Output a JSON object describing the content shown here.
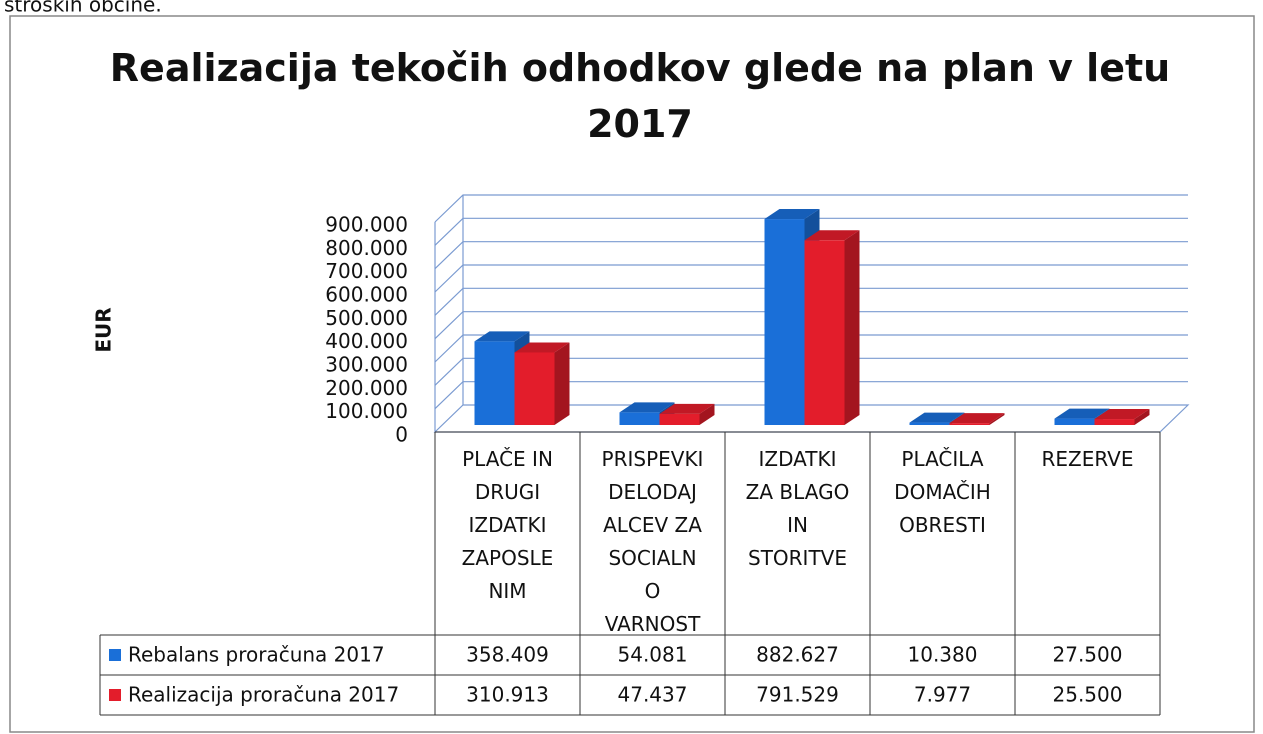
{
  "page_text": "stroških občine.",
  "chart_data": {
    "type": "bar3d",
    "title": "Realizacija tekočih odhodkov glede na plan v letu 2017",
    "y_label": "EUR",
    "categories": [
      "PLAČE IN\nDRUGI\nIZDATKI\nZAPOSLE\nNIM",
      "PRISPEVKI\nDELODAJ\nALCEV ZA\nSOCIALN\nO\nVARNOST",
      "IZDATKI\nZA BLAGO\nIN\nSTORITVE",
      "PLAČILA\nDOMAČIH\nOBRESTI",
      "REZERVE"
    ],
    "series": [
      {
        "name": "Rebalans proračuna 2017",
        "color": "#1a6fd8",
        "values": [
          358409,
          54081,
          882627,
          10380,
          27500
        ],
        "value_labels": [
          "358.409",
          "54.081",
          "882.627",
          "10.380",
          "27.500"
        ]
      },
      {
        "name": "Realizacija proračuna 2017",
        "color": "#e31d2b",
        "values": [
          310913,
          47437,
          791529,
          7977,
          25500
        ],
        "value_labels": [
          "310.913",
          "47.437",
          "791.529",
          "7.977",
          "25.500"
        ]
      }
    ],
    "ylim": [
      0,
      900000
    ],
    "yticks": [
      0,
      {
        "value": 100000,
        "label": "100.000"
      },
      {
        "value": 200000,
        "label": "200.000"
      },
      {
        "value": 300000,
        "label": "300.000"
      },
      {
        "value": 400000,
        "label": "400.000"
      },
      {
        "value": 500000,
        "label": "500.000"
      },
      {
        "value": 600000,
        "label": "600.000"
      },
      {
        "value": 700000,
        "label": "700.000"
      },
      {
        "value": 800000,
        "label": "800.000"
      },
      {
        "value": 900000,
        "label": "900.000"
      }
    ],
    "grid": true
  }
}
